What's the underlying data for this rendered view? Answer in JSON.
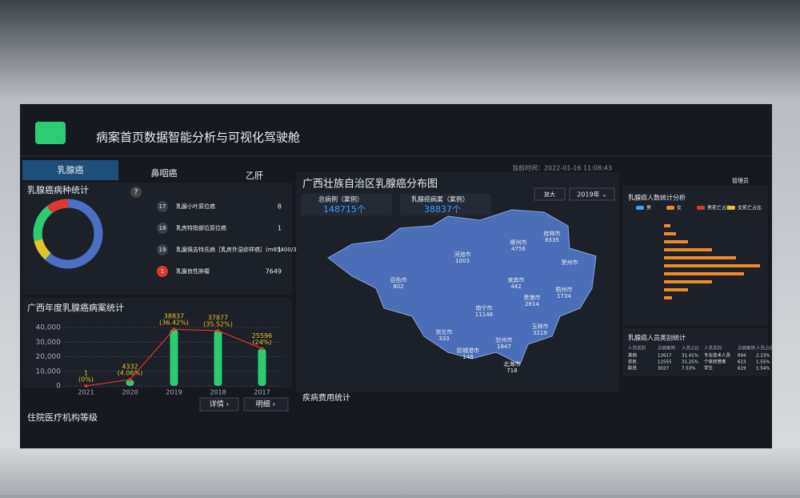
{
  "header": {
    "title": "病案首页数据智能分析与可视化驾驶舱",
    "time": "当前时间：2022-01-16 11:08:43",
    "user": "管理员"
  },
  "tabs": [
    "乳腺癌",
    "鼻咽癌",
    "乙肝"
  ],
  "disease_panel": {
    "title": "乳腺癌病种统计",
    "help": "?",
    "items": [
      {
        "index": "17",
        "name": "乳腺小叶原位癌",
        "count": "8"
      },
      {
        "index": "18",
        "name": "乳房特指部位原位癌",
        "count": "1"
      },
      {
        "index": "19",
        "name": "乳腺佩吉特氏病［乳房外湿疹样癌］(m85400/3)",
        "count": "1"
      },
      {
        "index": "1",
        "name": "乳腺良性肿瘤",
        "count": "7649"
      }
    ]
  },
  "chart_data": {
    "type": "bar",
    "title": "广西年度乳腺癌病案统计",
    "categories": [
      "2021",
      "2020",
      "2019",
      "2018",
      "2017"
    ],
    "values": [
      1,
      4332,
      38837,
      37877,
      25596
    ],
    "share_labels": [
      "(0%)",
      "(4.06%)",
      "(36.42%)",
      "(35.52%)",
      "(24%)"
    ],
    "color": "#2ecc71",
    "line_color": "#e0362c",
    "ylim": [
      0,
      45000
    ],
    "yticks": [
      0,
      {
        "value": 10000,
        "label": "10,000"
      },
      {
        "value": 20000,
        "label": "20,000"
      },
      {
        "value": 30000,
        "label": "30,000"
      },
      {
        "value": 40000,
        "label": "40,000"
      }
    ],
    "grid": true
  },
  "buttons": {
    "detail": "详情 ›",
    "list": "明细 ›",
    "zoom": "放大",
    "year": "2019年 ⌄"
  },
  "hospital_panel": {
    "title": "住院医疗机构等级"
  },
  "map_panel": {
    "title": "广西壮族自治区乳腺癌分布图",
    "stats": [
      {
        "label": "总病例（案例）",
        "value": "148715个"
      },
      {
        "label": "乳腺癌病案（案例）",
        "value": "38837个"
      }
    ],
    "cities": [
      {
        "name": "桂林市",
        "value": "8335"
      },
      {
        "name": "柳州市",
        "value": "4756"
      },
      {
        "name": "河池市",
        "value": "1003"
      },
      {
        "name": "贺州市",
        "value": ""
      },
      {
        "name": "百色市",
        "value": "802"
      },
      {
        "name": "来宾市",
        "value": "442"
      },
      {
        "name": "梧州市",
        "value": "1734"
      },
      {
        "name": "贵港市",
        "value": "2814"
      },
      {
        "name": "南宁市",
        "value": "11148"
      },
      {
        "name": "崇左市",
        "value": "333"
      },
      {
        "name": "玉林市",
        "value": "3219"
      },
      {
        "name": "钦州市",
        "value": "1847"
      },
      {
        "name": "防城港市",
        "value": "148"
      },
      {
        "name": "北海市",
        "value": "718"
      }
    ]
  },
  "cost_panel": {
    "title": "疾病费用统计"
  },
  "age_panel": {
    "title": "乳腺癌人数统计分析",
    "legend": [
      "男",
      "女",
      "男死亡占比",
      "女死亡占比"
    ]
  },
  "staff_table": {
    "title": "乳腺癌人员类别统计",
    "header": [
      "人员类别",
      "总病案例",
      "人员占比",
      "人员类别",
      "总病案例",
      "人员占比"
    ],
    "rows": [
      [
        "其他",
        "12617",
        "31.41%",
        "专业技术人员",
        "894",
        "2.23%"
      ],
      [
        "农民",
        "12555",
        "31.25%",
        "个体经营者",
        "623",
        "1.55%"
      ],
      [
        "职员",
        "3027",
        "7.53%",
        "学生",
        "619",
        "1.54%"
      ]
    ]
  }
}
